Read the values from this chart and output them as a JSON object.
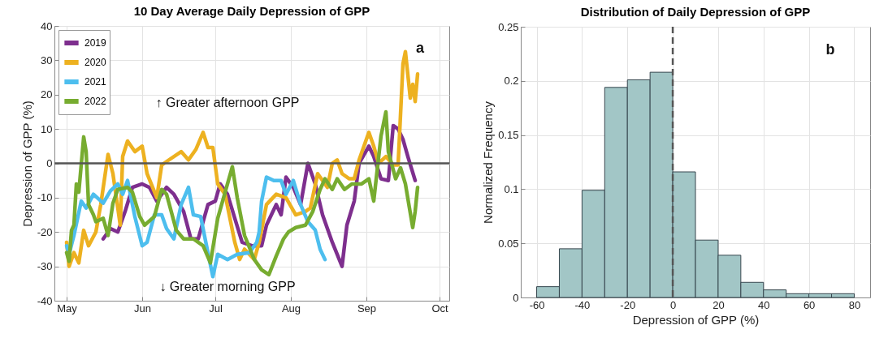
{
  "chart_data": [
    {
      "type": "line",
      "title": "10 Day Average Daily Depression of GPP",
      "ylabel": "Depression of GPP (%)",
      "annotations": [
        "a",
        "↑ Greater afternoon GPP",
        "↓ Greater morning GPP"
      ],
      "xlim": [
        "--04-26",
        "--10-05"
      ],
      "xticks": [
        {
          "value": "--05-01",
          "label": "May"
        },
        {
          "value": "--06-01",
          "label": "Jun"
        },
        {
          "value": "--07-01",
          "label": "Jul"
        },
        {
          "value": "--08-01",
          "label": "Aug"
        },
        {
          "value": "--09-01",
          "label": "Sep"
        },
        {
          "value": "--10-01",
          "label": "Oct"
        }
      ],
      "ylim": [
        -40,
        40
      ],
      "yticks": [
        -40,
        -30,
        -20,
        -10,
        0,
        10,
        20,
        30,
        40
      ],
      "grid": true,
      "legend": "top left",
      "ref_lines": [
        {
          "axis": "y",
          "value": 0,
          "color": "#555555"
        }
      ],
      "series": [
        {
          "name": "2019",
          "color": "#7e2f8e",
          "x": [
            "--05-16",
            "--05-19",
            "--05-22",
            "--05-25",
            "--05-28",
            "--06-01",
            "--06-04",
            "--06-07",
            "--06-11",
            "--06-14",
            "--06-18",
            "--06-21",
            "--06-24",
            "--06-28",
            "--07-01",
            "--07-03",
            "--07-06",
            "--07-09",
            "--07-12",
            "--07-16",
            "--07-20",
            "--07-22",
            "--07-26",
            "--07-28",
            "--07-30",
            "--08-02",
            "--08-05",
            "--08-08",
            "--08-11",
            "--08-14",
            "--08-18",
            "--08-22",
            "--08-24",
            "--08-27",
            "--08-29",
            "--09-02",
            "--09-04",
            "--09-07",
            "--09-10",
            "--09-12",
            "--09-14",
            "--09-16",
            "--09-18",
            "--09-21"
          ],
          "values": [
            -22,
            -19,
            -20,
            -14,
            -7,
            -6,
            -7,
            -11,
            -7,
            -9,
            -14,
            -22,
            -22,
            -12,
            -11,
            -6,
            -9,
            -16,
            -23,
            -24,
            -24,
            -18,
            -12,
            -15,
            -4,
            -7,
            -12,
            0,
            -6,
            -15,
            -23,
            -30,
            -18,
            -11,
            0,
            5,
            2,
            -4.5,
            -5,
            11,
            10,
            7,
            2,
            -5
          ]
        },
        {
          "name": "2020",
          "color": "#edb120",
          "x": [
            "--05-01",
            "--05-02",
            "--05-04",
            "--05-06",
            "--05-08",
            "--05-10",
            "--05-13",
            "--05-15",
            "--05-18",
            "--05-20",
            "--05-23",
            "--05-24",
            "--05-26",
            "--05-29",
            "--06-01",
            "--06-03",
            "--06-07",
            "--06-09",
            "--06-12",
            "--06-17",
            "--06-20",
            "--06-23",
            "--06-26",
            "--06-28",
            "--06-30",
            "--07-02",
            "--07-05",
            "--07-09",
            "--07-11",
            "--07-13",
            "--07-17",
            "--07-19",
            "--07-22",
            "--07-26",
            "--07-30",
            "--08-03",
            "--08-07",
            "--08-09",
            "--08-12",
            "--08-16",
            "--08-18",
            "--08-20",
            "--08-22",
            "--08-25",
            "--08-27",
            "--08-29",
            "--08-31",
            "--09-02",
            "--09-04",
            "--09-06",
            "--09-09",
            "--09-12",
            "--09-14",
            "--09-16",
            "--09-17",
            "--09-19",
            "--09-20",
            "--09-21",
            "--09-22"
          ],
          "values": [
            -23,
            -30,
            -26,
            -29,
            -19.5,
            -24,
            -20,
            -12,
            2.6,
            -3,
            -18,
            2,
            6.5,
            3.4,
            5,
            -3,
            -10,
            -0.5,
            1,
            3.4,
            1,
            4,
            9,
            4.6,
            4.6,
            -6,
            -9,
            -23,
            -28,
            -25,
            -28,
            -23,
            -12,
            -9,
            -10,
            -15,
            -14,
            -13,
            -3,
            -7,
            0,
            1,
            -3,
            -4.5,
            -4.5,
            1,
            5,
            9,
            5,
            0,
            2,
            -0.5,
            -0.5,
            29,
            32.5,
            19,
            23,
            18,
            26
          ]
        },
        {
          "name": "2021",
          "color": "#4dbeee",
          "x": [
            "--05-01",
            "--05-02",
            "--05-04",
            "--05-07",
            "--05-09",
            "--05-12",
            "--05-16",
            "--05-19",
            "--05-22",
            "--05-24",
            "--05-26",
            "--05-29",
            "--06-01",
            "--06-03",
            "--06-06",
            "--06-09",
            "--06-11",
            "--06-14",
            "--06-17",
            "--06-20",
            "--06-22",
            "--06-25",
            "--06-27",
            "--06-30",
            "--07-02",
            "--07-06",
            "--07-10",
            "--07-15",
            "--07-18",
            "--07-19",
            "--07-20",
            "--07-22",
            "--07-25",
            "--07-28",
            "--07-30",
            "--08-02",
            "--08-05",
            "--08-08",
            "--08-11",
            "--08-13",
            "--08-15"
          ],
          "values": [
            -24,
            -26.5,
            -21,
            -11,
            -13,
            -9,
            -11.6,
            -8,
            -6,
            -9,
            -5,
            -15.5,
            -24,
            -23,
            -15,
            -15,
            -19,
            -22,
            -12,
            -7,
            -15,
            -15.5,
            -22.6,
            -33,
            -26.5,
            -28,
            -26.5,
            -26,
            -23,
            -20,
            -11,
            -4,
            -5,
            -5,
            -9,
            -5,
            -12,
            -17,
            -19.4,
            -25,
            -28
          ]
        },
        {
          "name": "2022",
          "color": "#77ac30",
          "x": [
            "--05-01",
            "--05-02",
            "--05-03",
            "--05-04",
            "--05-05",
            "--05-06",
            "--05-08",
            "--05-09",
            "--05-10",
            "--05-12",
            "--05-13",
            "--05-16",
            "--05-18",
            "--05-20",
            "--05-22",
            "--05-26",
            "--05-28",
            "--05-31",
            "--06-02",
            "--06-06",
            "--06-09",
            "--06-11",
            "--06-15",
            "--06-18",
            "--06-22",
            "--06-26",
            "--06-29",
            "--07-02",
            "--07-06",
            "--07-08",
            "--07-10",
            "--07-13",
            "--07-17",
            "--07-20",
            "--07-23",
            "--07-26",
            "--07-29",
            "--07-31",
            "--08-03",
            "--08-07",
            "--08-10",
            "--08-13",
            "--08-15",
            "--08-18",
            "--08-20",
            "--08-23",
            "--08-26",
            "--08-30",
            "--09-02",
            "--09-04",
            "--09-07",
            "--09-09",
            "--09-10",
            "--09-13",
            "--09-15",
            "--09-17",
            "--09-20",
            "--09-21",
            "--09-22"
          ],
          "values": [
            -26,
            -28.5,
            -19.5,
            -18,
            -6,
            -8.4,
            7.7,
            3.4,
            -12,
            -15,
            -17,
            -16,
            -21,
            -11.6,
            -7.6,
            -7,
            -8.4,
            -15.5,
            -18,
            -15.5,
            -7.6,
            -9,
            -19.5,
            -22,
            -22,
            -24,
            -29,
            -16,
            -6,
            -1,
            -10,
            -21,
            -28,
            -31,
            -32.4,
            -27,
            -22,
            -20,
            -18.7,
            -18,
            -14,
            -7.6,
            -4.5,
            -7.6,
            -4.5,
            -7.6,
            -6,
            -6,
            -4.5,
            -11,
            8,
            15,
            3.4,
            -4.5,
            -1.3,
            -6,
            -18.7,
            -14,
            -7
          ]
        }
      ]
    },
    {
      "type": "histogram",
      "title": "Distribution of Daily Depression of GPP",
      "xlabel": "Depression of GPP (%)",
      "ylabel": "Normalized Frequency",
      "annotations": [
        "b"
      ],
      "bins": [
        -60,
        -50,
        -40,
        -30,
        -20,
        -10,
        0,
        10,
        20,
        30,
        40,
        50,
        60,
        70,
        80
      ],
      "values": [
        0.01,
        0.045,
        0.099,
        0.194,
        0.201,
        0.208,
        0.116,
        0.053,
        0.039,
        0.014,
        0.007,
        0.0035,
        0.0035,
        0.0035
      ],
      "color": "#a2c6c6",
      "xlim": [
        -67,
        87
      ],
      "xticks": [
        -60,
        -40,
        -20,
        0,
        20,
        40,
        60,
        80
      ],
      "ylim": [
        0,
        0.25
      ],
      "yticks": [
        0,
        0.05,
        0.1,
        0.15,
        0.2,
        0.25
      ],
      "grid": true,
      "ref_lines": [
        {
          "axis": "x",
          "value": 0,
          "color": "#555555",
          "line_style": "dashed"
        }
      ]
    }
  ]
}
